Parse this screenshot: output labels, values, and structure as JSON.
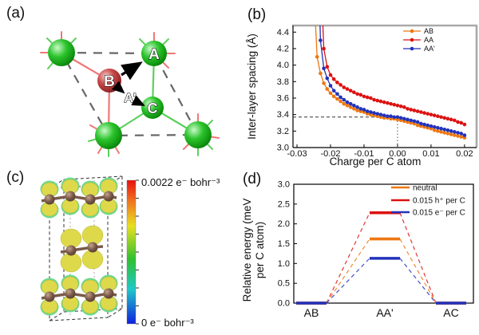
{
  "figure": {
    "panel_a_label": "(a)",
    "panel_b_label": "(b)",
    "panel_c_label": "(c)",
    "panel_d_label": "(d)"
  },
  "panel_a": {
    "site_labels": {
      "A": "A",
      "B": "B",
      "A_prime": "A'",
      "C": "C"
    },
    "colors": {
      "green_atom": "#2dc42d",
      "red_atom": "#c84848",
      "green_bond": "#5ecf5e",
      "red_bond": "#ef7777"
    }
  },
  "panel_c": {
    "colorbar": {
      "max_label": "0.0022 e⁻ bohr⁻³",
      "min_label": "0 e⁻ bohr⁻³",
      "gradient_top_color": "#e81010",
      "gradient_bottom_color": "#1020e0"
    }
  },
  "chart_data": [
    {
      "id": "b",
      "type": "line",
      "title": "",
      "xlabel": "Charge per C atom",
      "ylabel": "Inter-layer spacing (Å)",
      "xlim": [
        -0.0312,
        0.0236
      ],
      "ylim": [
        3.0,
        4.48
      ],
      "xticks": [
        -0.03,
        -0.02,
        -0.01,
        0.0,
        0.01,
        0.02
      ],
      "xtick_labels": [
        "-0.03",
        "-0.02",
        "-0.01",
        "0.00",
        "0.01",
        "0.02"
      ],
      "yticks": [
        3.0,
        3.2,
        3.4,
        3.6,
        3.8,
        4.0,
        4.2,
        4.4
      ],
      "ytick_labels": [
        "3.0",
        "3.2",
        "3.4",
        "3.6",
        "3.8",
        "4.0",
        "4.2",
        "4.4"
      ],
      "grid": false,
      "legend_position": "top-right",
      "ref_lines": {
        "h_y": 3.37,
        "v_x": 0.0
      },
      "series": [
        {
          "name": "AB",
          "color": "#ee7711",
          "marker": "circle",
          "x": [
            -0.0246,
            -0.024,
            -0.023,
            -0.022,
            -0.021,
            -0.02,
            -0.019,
            -0.018,
            -0.017,
            -0.016,
            -0.015,
            -0.014,
            -0.013,
            -0.012,
            -0.011,
            -0.01,
            -0.009,
            -0.008,
            -0.007,
            -0.006,
            -0.005,
            -0.004,
            -0.003,
            -0.002,
            -0.001,
            0.0,
            0.001,
            0.002,
            0.003,
            0.004,
            0.005,
            0.006,
            0.007,
            0.008,
            0.009,
            0.01,
            0.011,
            0.012,
            0.013,
            0.014,
            0.015,
            0.016,
            0.017,
            0.018,
            0.019,
            0.02
          ],
          "y": [
            4.6,
            4.1,
            3.9,
            3.78,
            3.71,
            3.66,
            3.62,
            3.59,
            3.56,
            3.53,
            3.51,
            3.49,
            3.47,
            3.45,
            3.44,
            3.43,
            3.41,
            3.4,
            3.39,
            3.38,
            3.37,
            3.36,
            3.36,
            3.35,
            3.35,
            3.34,
            3.33,
            3.32,
            3.31,
            3.3,
            3.29,
            3.27,
            3.26,
            3.25,
            3.24,
            3.23,
            3.21,
            3.2,
            3.19,
            3.18,
            3.17,
            3.16,
            3.15,
            3.14,
            3.13,
            3.12
          ]
        },
        {
          "name": "AA",
          "color": "#dd1111",
          "marker": "circle",
          "x": [
            -0.0224,
            -0.022,
            -0.021,
            -0.02,
            -0.019,
            -0.018,
            -0.017,
            -0.016,
            -0.015,
            -0.014,
            -0.013,
            -0.012,
            -0.011,
            -0.01,
            -0.009,
            -0.008,
            -0.007,
            -0.006,
            -0.005,
            -0.004,
            -0.003,
            -0.002,
            -0.001,
            0.0,
            0.001,
            0.002,
            0.003,
            0.004,
            0.005,
            0.006,
            0.007,
            0.008,
            0.009,
            0.01,
            0.011,
            0.012,
            0.013,
            0.014,
            0.015,
            0.016,
            0.017,
            0.018,
            0.019,
            0.02
          ],
          "y": [
            4.6,
            4.2,
            3.98,
            3.88,
            3.83,
            3.79,
            3.76,
            3.73,
            3.71,
            3.69,
            3.67,
            3.65,
            3.64,
            3.62,
            3.61,
            3.6,
            3.58,
            3.57,
            3.56,
            3.55,
            3.54,
            3.53,
            3.52,
            3.51,
            3.5,
            3.49,
            3.47,
            3.46,
            3.45,
            3.44,
            3.43,
            3.42,
            3.41,
            3.4,
            3.39,
            3.38,
            3.37,
            3.36,
            3.35,
            3.34,
            3.33,
            3.31,
            3.3,
            3.28
          ]
        },
        {
          "name": "AA'",
          "color": "#2233bb",
          "marker": "circle",
          "x": [
            -0.0232,
            -0.023,
            -0.022,
            -0.021,
            -0.02,
            -0.019,
            -0.018,
            -0.017,
            -0.016,
            -0.015,
            -0.014,
            -0.013,
            -0.012,
            -0.011,
            -0.01,
            -0.009,
            -0.008,
            -0.007,
            -0.006,
            -0.005,
            -0.004,
            -0.003,
            -0.002,
            -0.001,
            0.0,
            0.001,
            0.002,
            0.003,
            0.004,
            0.005,
            0.006,
            0.007,
            0.008,
            0.009,
            0.01,
            0.011,
            0.012,
            0.013,
            0.014,
            0.015,
            0.016,
            0.017,
            0.018,
            0.019,
            0.02
          ],
          "y": [
            4.6,
            4.3,
            3.96,
            3.84,
            3.75,
            3.69,
            3.65,
            3.61,
            3.58,
            3.55,
            3.53,
            3.51,
            3.49,
            3.47,
            3.46,
            3.44,
            3.43,
            3.42,
            3.41,
            3.4,
            3.39,
            3.38,
            3.38,
            3.37,
            3.37,
            3.36,
            3.35,
            3.34,
            3.33,
            3.32,
            3.31,
            3.29,
            3.28,
            3.27,
            3.26,
            3.25,
            3.24,
            3.23,
            3.22,
            3.21,
            3.2,
            3.19,
            3.18,
            3.17,
            3.15
          ]
        }
      ]
    },
    {
      "id": "d",
      "type": "line",
      "subtype": "energy-levels",
      "title": "",
      "xlabel": "",
      "ylabel": "Relative energy (meV per C atom)",
      "ylabel_lines": [
        "Relative energy (meV",
        "per C atom)"
      ],
      "categories": [
        "AB",
        "AA'",
        "AC"
      ],
      "ylim": [
        0.0,
        3.0
      ],
      "yticks": [
        0.0,
        0.5,
        1.0,
        1.5,
        2.0,
        2.5,
        3.0
      ],
      "ytick_labels": [
        "0.0",
        "0.5",
        "1.0",
        "1.5",
        "2.0",
        "2.5",
        "3.0"
      ],
      "grid": false,
      "legend_position": "top-right",
      "series": [
        {
          "name": "neutral",
          "color": "#ee7711",
          "values": [
            0.0,
            1.62,
            0.0
          ]
        },
        {
          "name": "0.015 h⁺ per C",
          "color": "#dd1111",
          "values": [
            0.0,
            2.28,
            0.0
          ]
        },
        {
          "name": "0.015 e⁻ per C",
          "color": "#2233bb",
          "values": [
            0.0,
            1.13,
            0.0
          ]
        }
      ]
    }
  ]
}
